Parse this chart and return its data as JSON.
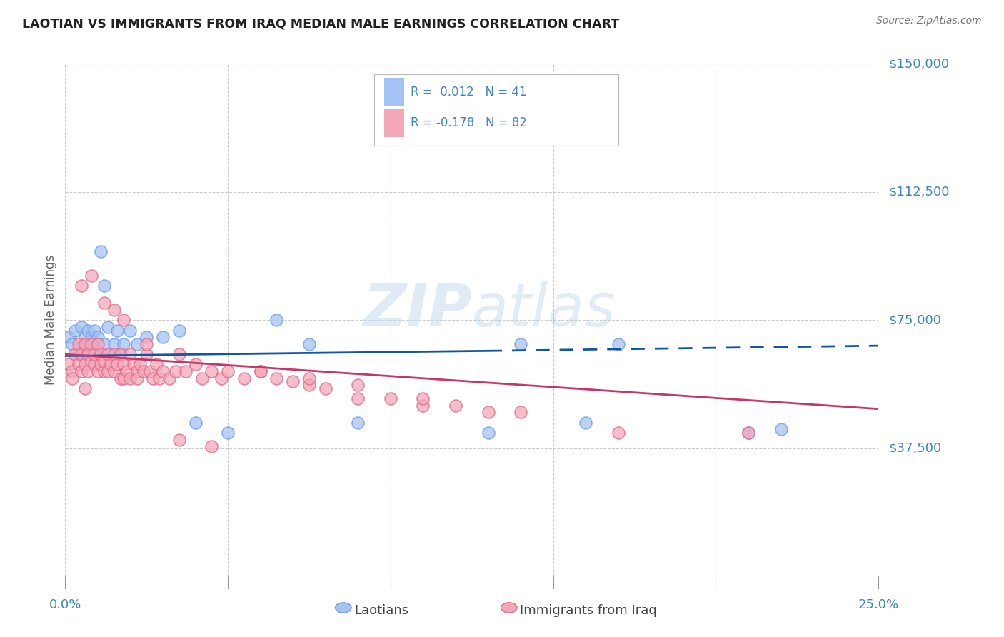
{
  "title": "LAOTIAN VS IMMIGRANTS FROM IRAQ MEDIAN MALE EARNINGS CORRELATION CHART",
  "source": "Source: ZipAtlas.com",
  "ylabel": "Median Male Earnings",
  "yticks": [
    37500,
    75000,
    112500,
    150000
  ],
  "ytick_labels": [
    "$37,500",
    "$75,000",
    "$112,500",
    "$150,000"
  ],
  "xlim": [
    0.0,
    0.25
  ],
  "ylim": [
    0,
    150000
  ],
  "watermark": "ZIPatlas",
  "legend_label1": "Laotians",
  "legend_label2": "Immigrants from Iraq",
  "blue_color": "#a4c2f4",
  "pink_color": "#f4a7b9",
  "blue_edge_color": "#6d9eeb",
  "pink_edge_color": "#e06c8b",
  "blue_line_color": "#1155aa",
  "pink_line_color": "#cc3366",
  "title_color": "#222222",
  "source_color": "#777777",
  "axis_label_color": "#666666",
  "tick_label_color": "#3d85c8",
  "grid_color": "#cccccc",
  "blue_x": [
    0.001,
    0.002,
    0.003,
    0.004,
    0.005,
    0.005,
    0.006,
    0.006,
    0.007,
    0.007,
    0.008,
    0.008,
    0.009,
    0.009,
    0.01,
    0.01,
    0.011,
    0.012,
    0.012,
    0.013,
    0.014,
    0.015,
    0.016,
    0.017,
    0.018,
    0.02,
    0.022,
    0.025,
    0.03,
    0.035,
    0.04,
    0.05,
    0.065,
    0.075,
    0.09,
    0.13,
    0.14,
    0.16,
    0.17,
    0.21,
    0.22
  ],
  "blue_y": [
    70000,
    68000,
    72000,
    65000,
    73000,
    67000,
    70000,
    65000,
    68000,
    72000,
    70000,
    65000,
    67000,
    72000,
    65000,
    70000,
    95000,
    85000,
    68000,
    73000,
    65000,
    68000,
    72000,
    65000,
    68000,
    72000,
    68000,
    70000,
    70000,
    72000,
    45000,
    42000,
    75000,
    68000,
    45000,
    42000,
    68000,
    45000,
    68000,
    42000,
    43000
  ],
  "pink_x": [
    0.001,
    0.002,
    0.002,
    0.003,
    0.004,
    0.004,
    0.005,
    0.005,
    0.006,
    0.006,
    0.006,
    0.007,
    0.007,
    0.008,
    0.008,
    0.009,
    0.009,
    0.01,
    0.01,
    0.011,
    0.011,
    0.012,
    0.012,
    0.013,
    0.013,
    0.014,
    0.015,
    0.015,
    0.016,
    0.017,
    0.017,
    0.018,
    0.018,
    0.019,
    0.02,
    0.02,
    0.021,
    0.022,
    0.022,
    0.023,
    0.024,
    0.025,
    0.026,
    0.027,
    0.028,
    0.029,
    0.03,
    0.032,
    0.034,
    0.035,
    0.037,
    0.04,
    0.042,
    0.045,
    0.048,
    0.05,
    0.055,
    0.06,
    0.065,
    0.07,
    0.075,
    0.08,
    0.09,
    0.1,
    0.11,
    0.12,
    0.13,
    0.14,
    0.17,
    0.21,
    0.005,
    0.008,
    0.012,
    0.015,
    0.018,
    0.025,
    0.035,
    0.045,
    0.06,
    0.075,
    0.09,
    0.11
  ],
  "pink_y": [
    62000,
    60000,
    58000,
    65000,
    62000,
    68000,
    65000,
    60000,
    68000,
    62000,
    55000,
    65000,
    60000,
    63000,
    68000,
    62000,
    65000,
    60000,
    68000,
    62000,
    65000,
    60000,
    63000,
    65000,
    60000,
    62000,
    65000,
    60000,
    62000,
    58000,
    65000,
    62000,
    58000,
    60000,
    65000,
    58000,
    62000,
    60000,
    58000,
    62000,
    60000,
    65000,
    60000,
    58000,
    62000,
    58000,
    60000,
    58000,
    60000,
    65000,
    60000,
    62000,
    58000,
    60000,
    58000,
    60000,
    58000,
    60000,
    58000,
    57000,
    56000,
    55000,
    52000,
    52000,
    50000,
    50000,
    48000,
    48000,
    42000,
    42000,
    85000,
    88000,
    80000,
    78000,
    75000,
    68000,
    40000,
    38000,
    60000,
    58000,
    56000,
    52000
  ]
}
